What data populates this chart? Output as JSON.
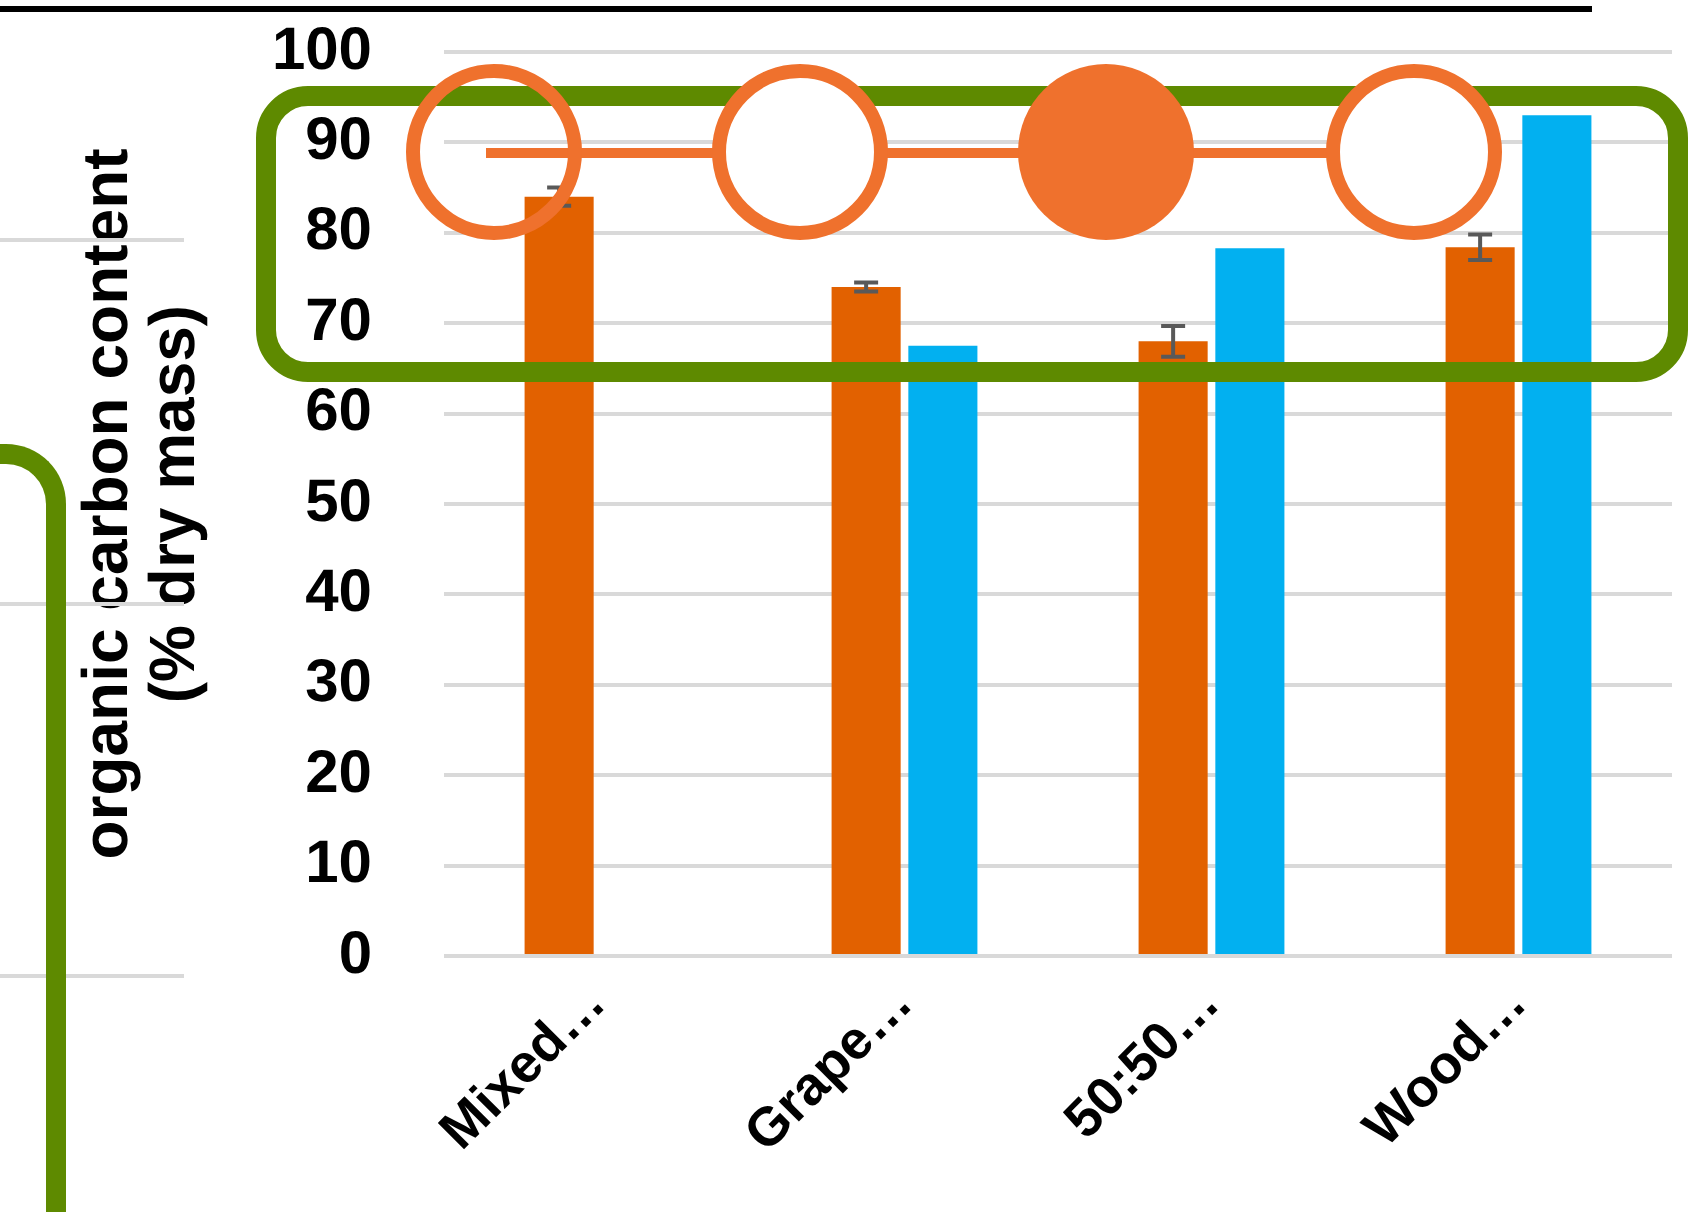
{
  "chart_data": {
    "type": "bar",
    "ylabel": "organic carbon content\n(% dry mass)",
    "categories": [
      "Mixed…",
      "Grape…",
      "50:50…",
      "Wood…"
    ],
    "series": [
      {
        "color": "#e26100",
        "values": [
          84,
          74,
          68,
          78.4
        ],
        "errors": [
          1,
          0.5,
          1.7,
          1.4
        ]
      },
      {
        "color": "#02b0f0",
        "values": [
          null,
          67.5,
          78.3,
          93
        ]
      }
    ],
    "ylim": [
      0,
      100
    ],
    "yticks": [
      0,
      10,
      20,
      30,
      40,
      50,
      60,
      70,
      80,
      90,
      100
    ],
    "grid": "y",
    "legend": false
  }
}
